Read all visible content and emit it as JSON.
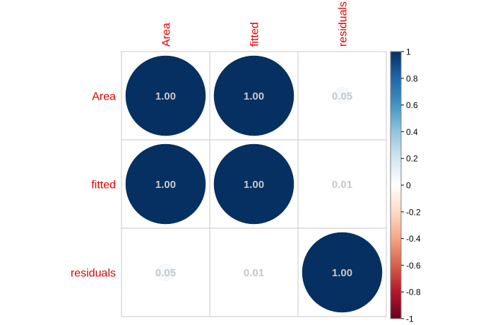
{
  "chart_data": {
    "type": "heatmap",
    "variables": [
      "Area",
      "fitted",
      "residuals"
    ],
    "matrix": [
      [
        1.0,
        1.0,
        0.05
      ],
      [
        1.0,
        1.0,
        0.01
      ],
      [
        0.05,
        0.01,
        1.0
      ]
    ],
    "value_labels": [
      [
        "1.00",
        "1.00",
        "0.05"
      ],
      [
        "1.00",
        "1.00",
        "0.01"
      ],
      [
        "0.05",
        "0.01",
        "1.00"
      ]
    ],
    "colorbar": {
      "range": [
        -1,
        1
      ],
      "ticks": [
        "1",
        "0.8",
        "0.6",
        "0.4",
        "0.2",
        "0",
        "-0.2",
        "-0.4",
        "-0.6",
        "-0.8",
        "-1"
      ],
      "colors": [
        "#67001F",
        "#B2182B",
        "#D6604D",
        "#F4A582",
        "#FDDBC7",
        "#FFFFFF",
        "#D1E5F0",
        "#92C5DE",
        "#4393C3",
        "#2166AC",
        "#053061"
      ]
    },
    "label_color": "#e00000",
    "grid": true
  }
}
